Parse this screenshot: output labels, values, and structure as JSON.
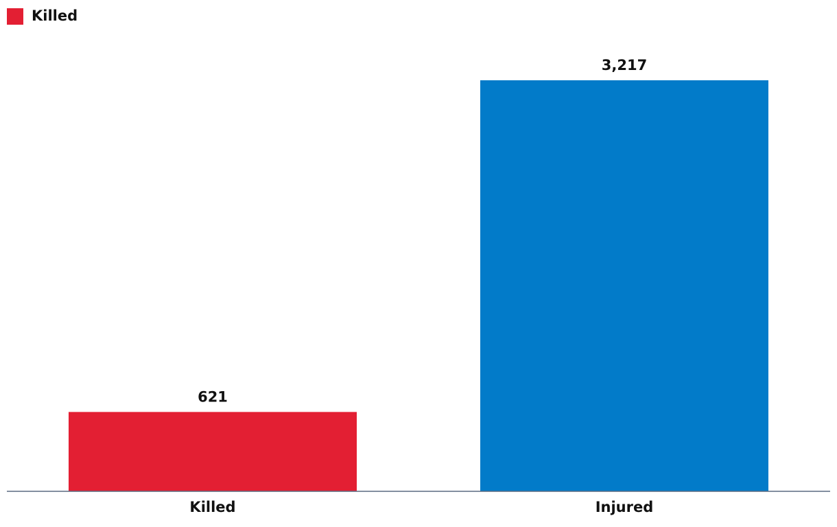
{
  "chart_data": {
    "type": "bar",
    "categories": [
      "Killed",
      "Injured"
    ],
    "values": [
      621,
      3217
    ],
    "value_labels": [
      "621",
      "3,217"
    ],
    "colors": [
      "#e31f33",
      "#027bc9"
    ],
    "legend": [
      {
        "name": "Killed",
        "color": "#e31f33"
      }
    ]
  }
}
